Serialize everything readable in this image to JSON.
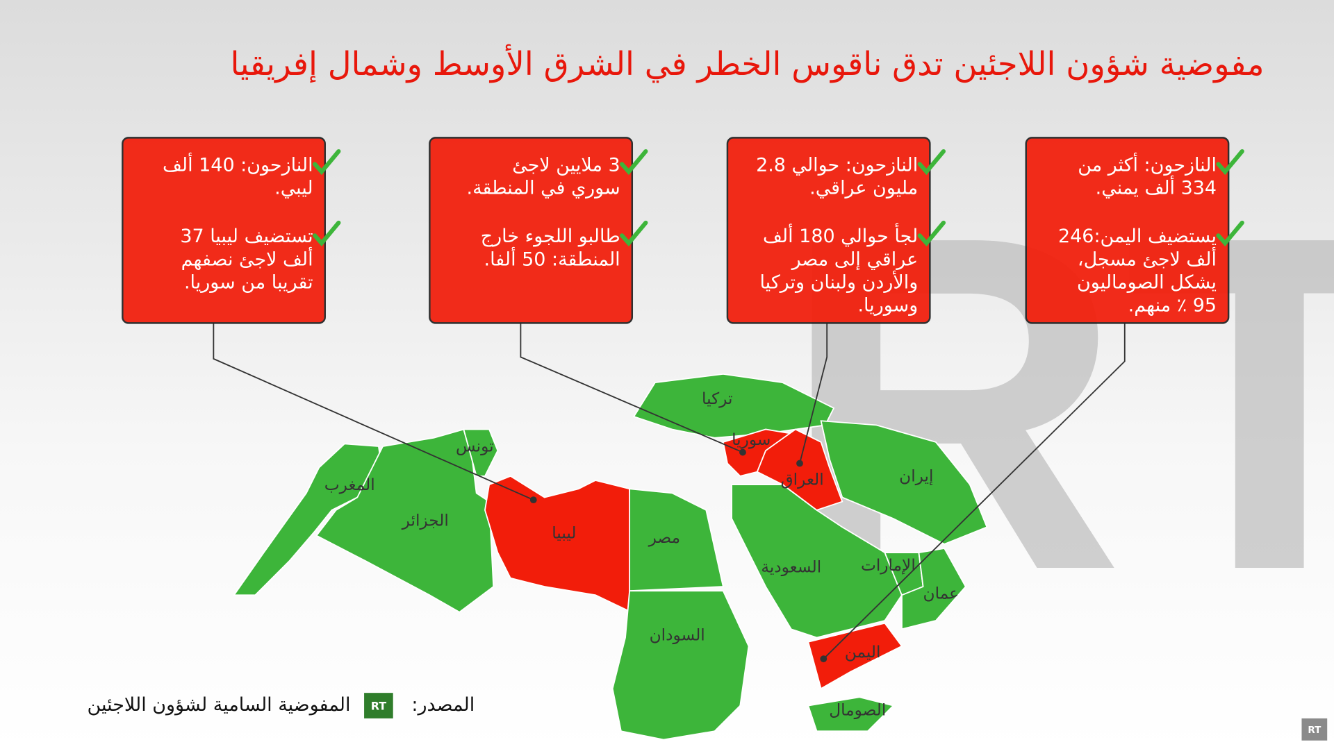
{
  "header": {
    "title": "مفوضية شؤون اللاجئين تدق ناقوس الخطر في الشرق الأوسط وشمال إفريقيا"
  },
  "boxes": [
    {
      "bullets": [
        [
          "النازحون: أكثر من",
          "334 ألف يمني."
        ],
        [
          "يستضيف اليمن:246",
          "ألف لاجئ مسجل،",
          "يشكل الصوماليون",
          "95 ٪ منهم."
        ]
      ]
    },
    {
      "bullets": [
        [
          "النازحون: حوالي 2.8",
          "مليون عراقي."
        ],
        [
          "لجأ حوالي 180 ألف",
          "عراقي إلى مصر",
          "والأردن ولبنان وتركيا",
          "وسوريا."
        ]
      ]
    },
    {
      "bullets": [
        [
          "3 ملايين لاجئ",
          "سوري في المنطقة."
        ],
        [
          "طالبو اللجوء خارج",
          "المنطقة: 50 ألفا."
        ]
      ]
    },
    {
      "bullets": [
        [
          "النازحون: 140 ألف",
          "ليبي."
        ],
        [
          "تستضيف ليبيا 37",
          "ألف لاجئ نصفهم",
          "تقريبا من سوريا."
        ]
      ]
    }
  ],
  "map": {
    "countries": [
      "تركيا",
      "سوريا",
      "العراق",
      "إيران",
      "تونس",
      "المغرب",
      "الجزائر",
      "ليبيا",
      "مصر",
      "السعودية",
      "الإمارات",
      "عمان",
      "السودان",
      "اليمن",
      "الصومال"
    ]
  },
  "footer": {
    "source_label": "المصدر:",
    "source": "المفوضية السامية لشؤون اللاجئين",
    "logo": "RT",
    "corner_logo": "RT"
  }
}
